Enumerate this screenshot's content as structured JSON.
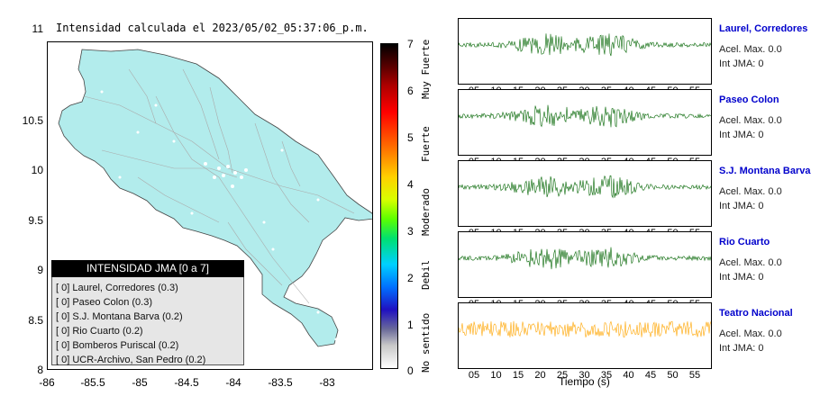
{
  "map": {
    "title": "Intensidad calculada el 2023/05/02_05:37:06_p.m.",
    "yticks": [
      "11",
      "10.5",
      "10",
      "9.5",
      "9",
      "8.5",
      "8"
    ],
    "xticks": [
      "-86",
      "-85.5",
      "-85",
      "-84.5",
      "-84",
      "-83.5",
      "-83"
    ],
    "land_color": "#b2ecec",
    "legend_header": "INTENSIDAD JMA [0 a 7]",
    "legend_rows": [
      "[ 0]  Laurel, Corredores (0.3)",
      "[ 0]  Paseo Colon (0.3)",
      "[ 0]  S.J. Montana Barva (0.2)",
      "[ 0]  Rio Cuarto (0.2)",
      "[ 0]  Bomberos Puriscal (0.2)",
      "[ 0]  UCR-Archivo, San Pedro (0.2)"
    ]
  },
  "colorbar": {
    "numbers": [
      "7",
      "6",
      "5",
      "4",
      "3",
      "2",
      "1",
      "0"
    ],
    "labels": [
      "Muy Fuerte",
      "Fuerte",
      "Moderado",
      "Debil",
      "No sentido"
    ]
  },
  "waveforms": {
    "time_ticks": [
      "05",
      "10",
      "15",
      "20",
      "25",
      "30",
      "35",
      "40",
      "45",
      "50",
      "55"
    ],
    "xlabel": "Tiempo (s)",
    "stations": [
      {
        "name": "Laurel, Corredores",
        "acel": "Acel. Max. 0.0",
        "int": "Int JMA: 0",
        "color": "#006400"
      },
      {
        "name": "Paseo Colon",
        "acel": "Acel. Max. 0.0",
        "int": "Int JMA: 0",
        "color": "#006400"
      },
      {
        "name": "S.J. Montana Barva",
        "acel": "Acel. Max. 0.0",
        "int": "Int JMA: 0",
        "color": "#006400"
      },
      {
        "name": "Rio Cuarto",
        "acel": "Acel. Max. 0.0",
        "int": "Int JMA: 0",
        "color": "#006400"
      },
      {
        "name": "Teatro Nacional",
        "acel": "Acel. Max. 0.0",
        "int": "Int JMA: 0",
        "color": "#ffa500"
      }
    ]
  }
}
